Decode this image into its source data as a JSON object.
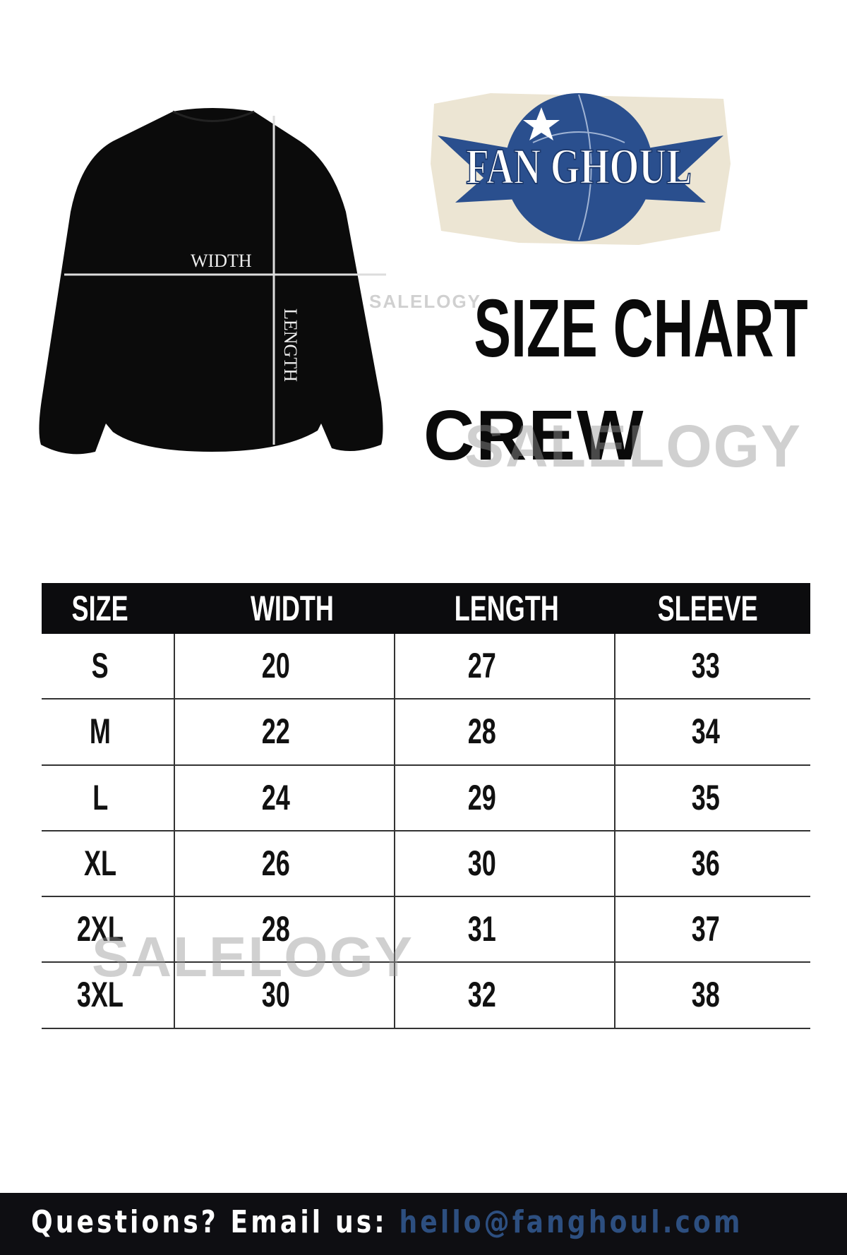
{
  "garment_labels": {
    "width": "WIDTH",
    "length": "LENGTH"
  },
  "brand": {
    "logo_text": "FAN GHOUL",
    "color": "#2a4f8e"
  },
  "title": "SIZE CHART",
  "subtitle": "CREW",
  "watermark": "SALELOGY",
  "table": {
    "headers": [
      "SIZE",
      "WIDTH",
      "LENGTH",
      "SLEEVE"
    ],
    "rows": [
      [
        "S",
        "20",
        "27",
        "33"
      ],
      [
        "M",
        "22",
        "28",
        "34"
      ],
      [
        "L",
        "24",
        "29",
        "35"
      ],
      [
        "XL",
        "26",
        "30",
        "36"
      ],
      [
        "2XL",
        "28",
        "31",
        "37"
      ],
      [
        "3XL",
        "30",
        "32",
        "38"
      ]
    ]
  },
  "footer": {
    "prompt": "Questions? Email us:",
    "email": "hello@fanghoul.com",
    "email_color": "#2d4f80"
  }
}
